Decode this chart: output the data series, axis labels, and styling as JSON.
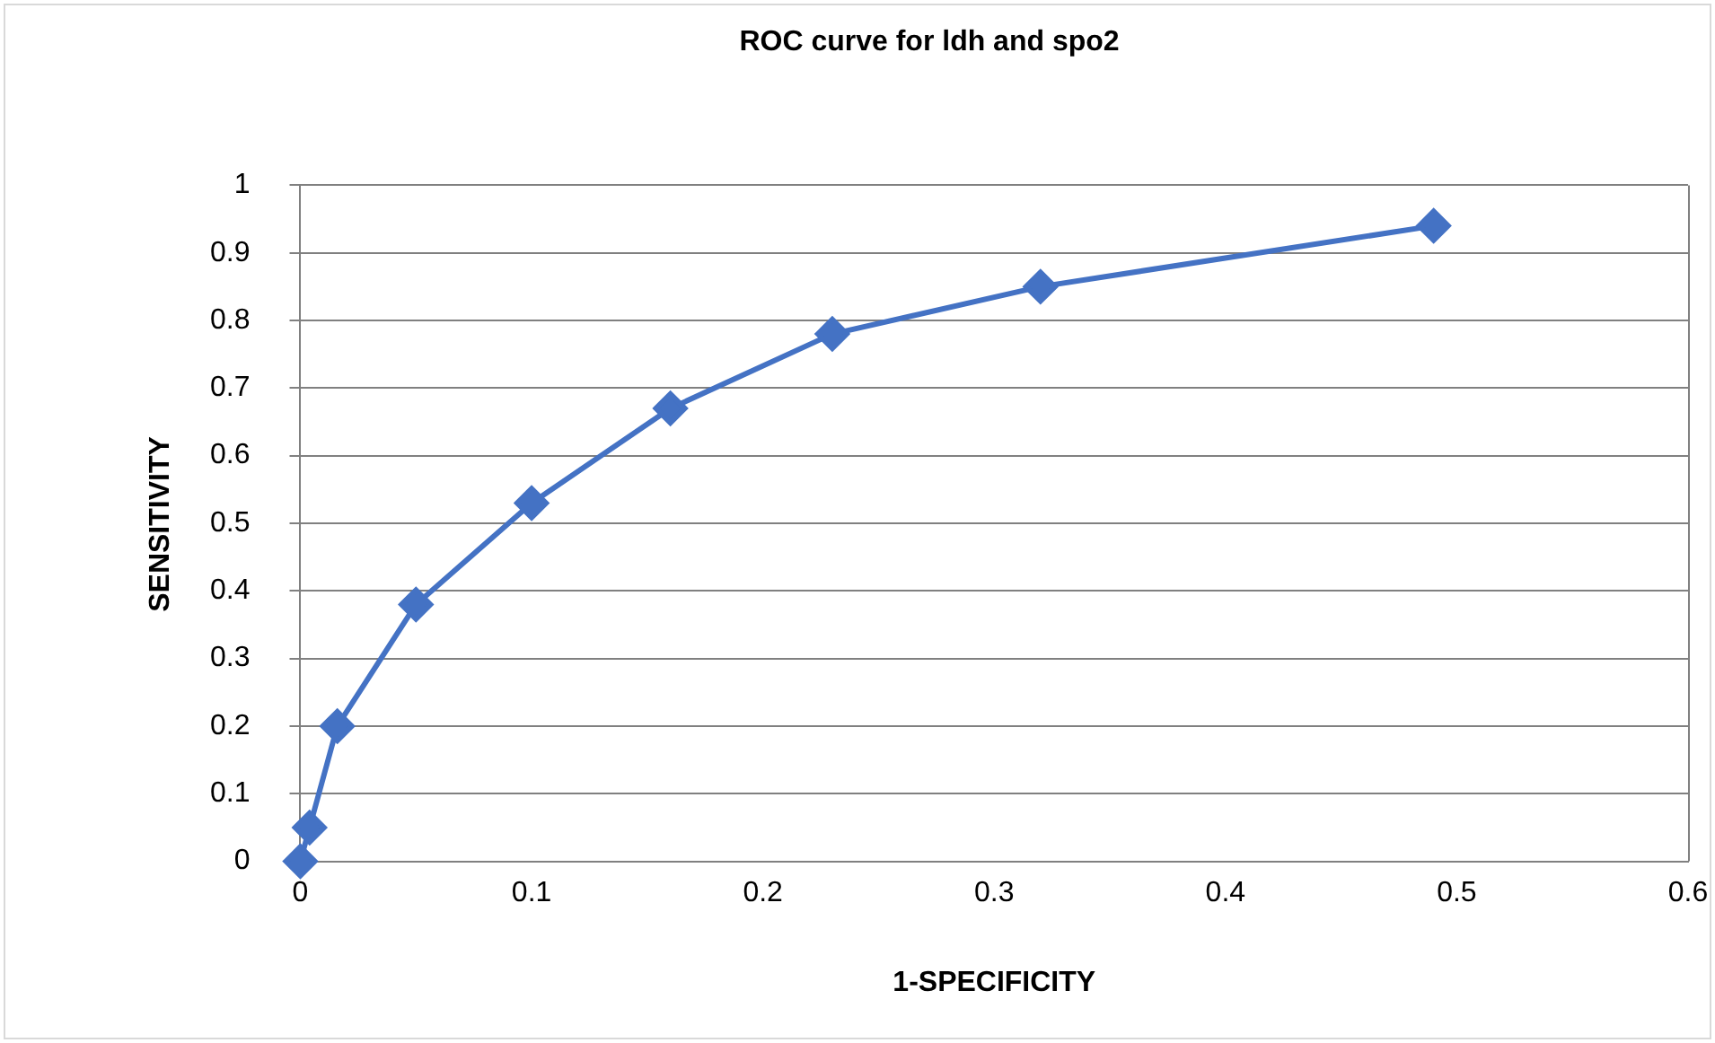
{
  "chart_data": {
    "type": "line",
    "title": "ROC curve for ldh and spo2",
    "xlabel": "1-SPECIFICITY",
    "ylabel": "SENSITIVITY",
    "x": [
      0,
      0.004,
      0.016,
      0.05,
      0.1,
      0.16,
      0.23,
      0.32,
      0.49
    ],
    "series": [
      {
        "color": "#4472c4",
        "values": [
          0,
          0.05,
          0.2,
          0.38,
          0.53,
          0.67,
          0.78,
          0.85,
          0.94
        ]
      }
    ],
    "xlim": [
      0,
      0.6
    ],
    "xticks": [
      0,
      0.1,
      0.2,
      0.3,
      0.4,
      0.5,
      0.6
    ],
    "ylim": [
      0,
      1
    ],
    "yticks": [
      0,
      0.1,
      0.2,
      0.3,
      0.4,
      0.5,
      0.6,
      0.7,
      0.8,
      0.9,
      1
    ],
    "grid": "y",
    "legend": false,
    "marker": "diamond",
    "line_style": "solid"
  }
}
